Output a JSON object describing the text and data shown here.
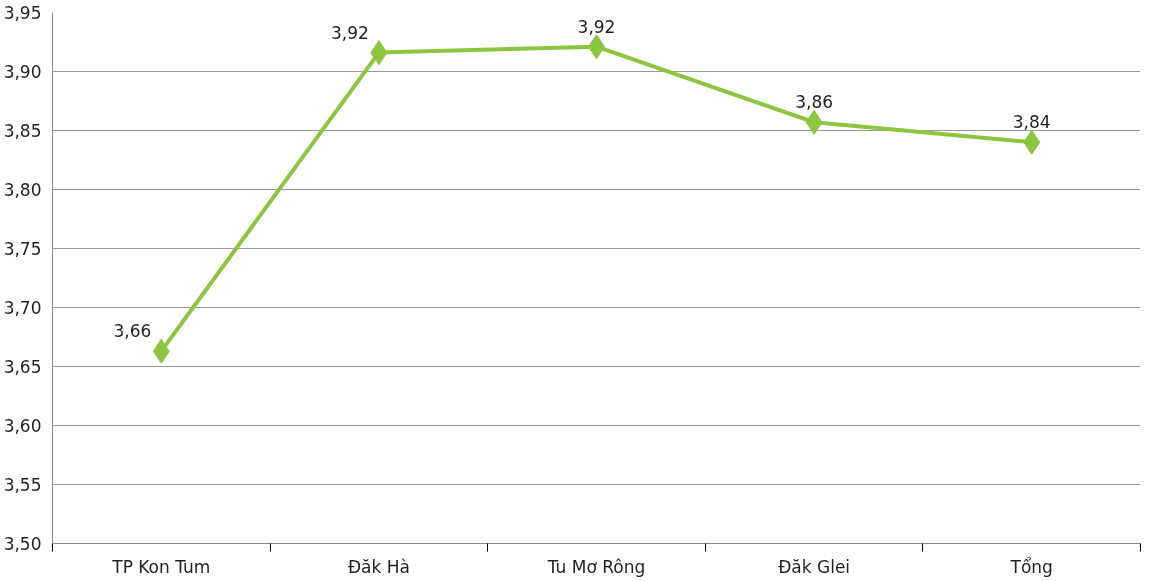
{
  "chart_data": {
    "type": "line",
    "categories": [
      "TP Kon Tum",
      "Đăk Hà",
      "Tu Mơ Rông",
      "Đăk Glei",
      "Tổng"
    ],
    "series": [
      {
        "color": "#8cc63e",
        "values": [
          3.663,
          3.916,
          3.921,
          3.857,
          3.84
        ],
        "value_labels": [
          "3,66",
          "3,92",
          "3,92",
          "3,86",
          "3,84"
        ]
      }
    ],
    "ylim": [
      3.5,
      3.95
    ],
    "yticks": [
      {
        "value": 3.5,
        "label": "3,50"
      },
      {
        "value": 3.55,
        "label": "3,55"
      },
      {
        "value": 3.6,
        "label": "3,60"
      },
      {
        "value": 3.65,
        "label": "3,65"
      },
      {
        "value": 3.7,
        "label": "3,70"
      },
      {
        "value": 3.75,
        "label": "3,75"
      },
      {
        "value": 3.8,
        "label": "3,80"
      },
      {
        "value": 3.85,
        "label": "3,85"
      },
      {
        "value": 3.9,
        "label": "3,90"
      },
      {
        "value": 3.95,
        "label": "3,95"
      }
    ],
    "grid": "y",
    "marker": "diamond",
    "line_style": "solid"
  }
}
